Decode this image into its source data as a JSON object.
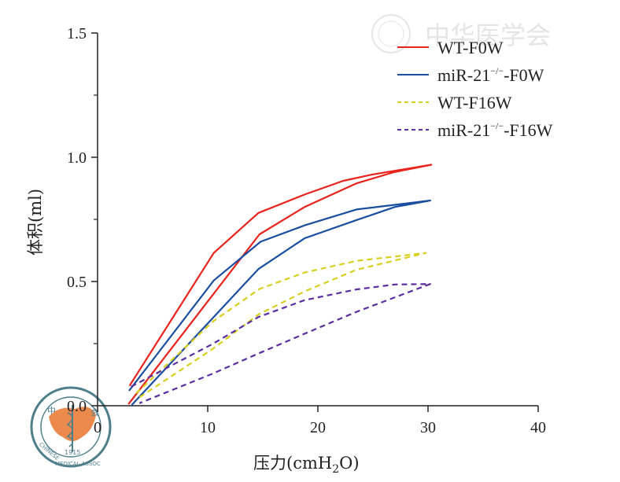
{
  "chart_data": {
    "type": "line",
    "title": "",
    "xlabel": "压力(cmH2O)",
    "xlabel_main": "压力(cmH",
    "xlabel_sub": "2",
    "xlabel_end": "O)",
    "ylabel": "体积(ml)",
    "xlim": [
      0,
      40
    ],
    "ylim": [
      0,
      1.5
    ],
    "xticks": [
      "0",
      "10",
      "20",
      "30",
      "40"
    ],
    "xtick_values": [
      0,
      10,
      20,
      30,
      40
    ],
    "yticks": [
      "0.0",
      "0.5",
      "1.0",
      "1.5"
    ],
    "ytick_values": [
      0,
      0.5,
      1.0,
      1.5
    ],
    "yminor_values": [
      0.25,
      0.75,
      1.25
    ],
    "grid": false,
    "legend_position": "top-right",
    "series": [
      {
        "name": "WT-F0W",
        "legend_main": "WT-F0W",
        "color": "#e8231c",
        "dashed": false,
        "x": [
          2.9,
          10.55,
          14.6,
          18.8,
          22.3,
          24.9,
          30.3,
          26.9,
          23.5,
          18.8,
          14.7,
          2.8
        ],
        "y": [
          0.08,
          0.615,
          0.776,
          0.85,
          0.905,
          0.93,
          0.97,
          0.94,
          0.895,
          0.8,
          0.69,
          0.006
        ]
      },
      {
        "name": "miR-21-/--F0W",
        "legend_main": "miR-21",
        "legend_sup": "−/−",
        "legend_end": "-F0W",
        "color": "#1a4fa0",
        "dashed": false,
        "x": [
          2.86,
          10.55,
          14.8,
          18.8,
          23.5,
          30.2,
          27.0,
          23.5,
          18.8,
          14.6,
          3.1
        ],
        "y": [
          0.06,
          0.504,
          0.66,
          0.726,
          0.79,
          0.826,
          0.8,
          0.747,
          0.674,
          0.55,
          0.003
        ]
      },
      {
        "name": "WT-F16W",
        "legend_main": "WT-F16W",
        "color": "#d8cf1e",
        "dashed": true,
        "x": [
          3.5,
          10.5,
          14.7,
          18.8,
          23.5,
          29.8,
          23.5,
          18.8,
          14.6,
          10.5,
          3.5
        ],
        "y": [
          0.05,
          0.34,
          0.47,
          0.536,
          0.583,
          0.615,
          0.547,
          0.46,
          0.367,
          0.23,
          0.025
        ]
      },
      {
        "name": "miR-21-/--F16W",
        "legend_main": "miR-21",
        "legend_sup": "−/−",
        "legend_end": "-F16W",
        "color": "#5a2ea0",
        "dashed": true,
        "x": [
          3.05,
          10.5,
          14.6,
          18.8,
          23.5,
          27.0,
          30.2,
          23.5,
          18.8,
          14.6,
          10.5,
          3.8
        ],
        "y": [
          0.077,
          0.25,
          0.357,
          0.425,
          0.468,
          0.488,
          0.49,
          0.378,
          0.29,
          0.21,
          0.13,
          0.01
        ]
      }
    ]
  },
  "logos": {
    "seal_text": "中华医学会 CHINESE MEDICAL ASSOCIATION 1915",
    "watermark_text": "中华医学会"
  }
}
